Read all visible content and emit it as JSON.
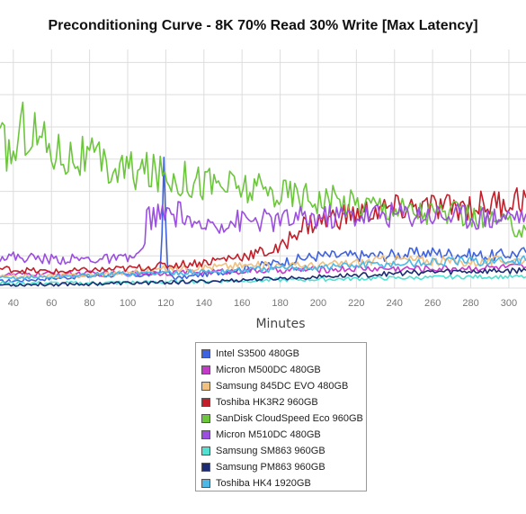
{
  "chart_data": {
    "type": "line",
    "title": "Preconditioning Curve - 8K 70% Read 30% Write [Max Latency]",
    "xlabel": "Minutes",
    "ylabel": "",
    "xlim": [
      33,
      309
    ],
    "ylim": [
      0,
      7.4
    ],
    "x_ticks": [
      40,
      60,
      80,
      100,
      120,
      140,
      160,
      180,
      200,
      220,
      240,
      260,
      280,
      300
    ],
    "grid": true,
    "legend_position": "bottom-center",
    "series": [
      {
        "name": "Intel S3500 480GB",
        "color": "#3f63e0",
        "x": [
          33,
          60,
          90,
          110,
          117,
          119,
          121,
          125,
          150,
          180,
          200,
          230,
          260,
          290,
          309
        ],
        "y": [
          0.2,
          0.3,
          0.4,
          0.4,
          0.5,
          3.5,
          0.5,
          0.3,
          0.5,
          0.8,
          1.0,
          1.0,
          1.1,
          1.0,
          1.1
        ]
      },
      {
        "name": "Micron M500DC 480GB",
        "color": "#c33ac9",
        "x": [
          33,
          60,
          100,
          140,
          180,
          220,
          260,
          309
        ],
        "y": [
          0.4,
          0.45,
          0.45,
          0.5,
          0.55,
          0.6,
          0.6,
          0.65
        ]
      },
      {
        "name": "Samsung 845DC EVO 480GB",
        "color": "#f0c080",
        "x": [
          33,
          80,
          120,
          160,
          200,
          240,
          280,
          309
        ],
        "y": [
          0.35,
          0.4,
          0.6,
          0.7,
          0.7,
          0.9,
          0.8,
          0.9
        ]
      },
      {
        "name": "Toshiba HK3R2 960GB",
        "color": "#c21f2a",
        "x": [
          33,
          60,
          100,
          140,
          160,
          180,
          190,
          210,
          230,
          250,
          270,
          290,
          309
        ],
        "y": [
          0.6,
          0.5,
          0.6,
          0.8,
          1.0,
          1.2,
          1.9,
          2.2,
          2.4,
          2.5,
          2.5,
          2.6,
          2.8
        ]
      },
      {
        "name": "SanDisk CloudSpeed Eco 960GB",
        "color": "#6cc63c",
        "x": [
          33,
          40,
          45,
          50,
          60,
          70,
          80,
          90,
          110,
          130,
          150,
          170,
          190,
          210,
          230,
          250,
          270,
          290,
          309
        ],
        "y": [
          4.5,
          4.1,
          5.0,
          4.9,
          4.3,
          4.1,
          4.0,
          3.7,
          3.6,
          3.4,
          3.2,
          3.0,
          2.9,
          2.7,
          2.6,
          2.4,
          2.3,
          2.1,
          1.8
        ]
      },
      {
        "name": "Micron M510DC 480GB",
        "color": "#9b4ee0",
        "x": [
          33,
          60,
          100,
          108,
          110,
          130,
          140,
          141,
          160,
          180,
          200,
          230,
          260,
          290,
          309
        ],
        "y": [
          1.0,
          0.9,
          0.9,
          1.1,
          2.2,
          2.3,
          1.6,
          2.0,
          2.1,
          2.1,
          2.2,
          2.3,
          2.3,
          2.2,
          2.3
        ]
      },
      {
        "name": "Samsung SM863 960GB",
        "color": "#52e0d0",
        "x": [
          33,
          80,
          130,
          180,
          230,
          280,
          309
        ],
        "y": [
          0.15,
          0.15,
          0.2,
          0.25,
          0.3,
          0.35,
          0.35
        ]
      },
      {
        "name": "Samsung PM863 960GB",
        "color": "#1c2b74",
        "x": [
          33,
          60,
          100,
          140,
          180,
          220,
          260,
          309
        ],
        "y": [
          0.1,
          0.12,
          0.15,
          0.2,
          0.3,
          0.4,
          0.5,
          0.55
        ]
      },
      {
        "name": "Toshiba HK4 1920GB",
        "color": "#4bb8e8",
        "x": [
          33,
          60,
          100,
          140,
          180,
          220,
          260,
          309
        ],
        "y": [
          0.3,
          0.35,
          0.45,
          0.5,
          0.6,
          0.7,
          0.8,
          0.85
        ]
      }
    ]
  }
}
